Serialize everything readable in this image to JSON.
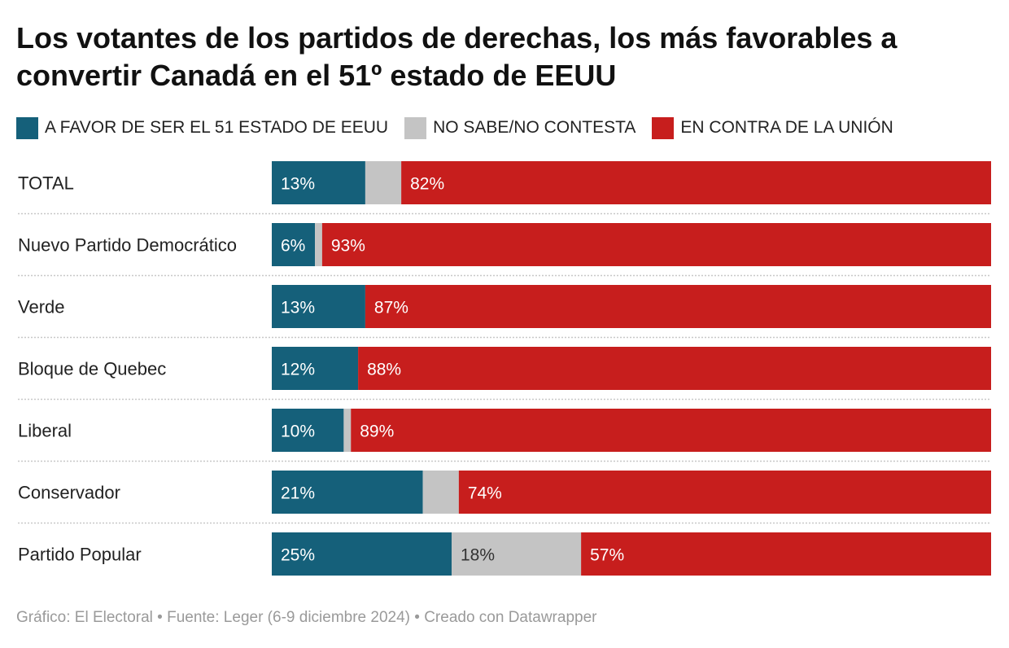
{
  "title": "Los votantes de los partidos de derechas, los más favorables a convertir Canadá en el 51º estado de EEUU",
  "legend": [
    {
      "label": "A FAVOR DE SER EL 51 ESTADO DE EEUU",
      "color": "#15607a"
    },
    {
      "label": "NO SABE/NO CONTESTA",
      "color": "#c4c4c4"
    },
    {
      "label": "EN CONTRA DE LA UNIÓN",
      "color": "#c71e1d"
    }
  ],
  "footer": "Gráfico: El Electoral • Fuente: Leger (6-9 diciembre 2024) • Creado con Datawrapper",
  "chart_data": {
    "type": "bar",
    "orientation": "horizontal",
    "stacked": "100%",
    "categories": [
      "TOTAL",
      "Nuevo Partido Democrático",
      "Verde",
      "Bloque de Quebec",
      "Liberal",
      "Conservador",
      "Partido Popular"
    ],
    "series": [
      {
        "name": "A FAVOR DE SER EL 51 ESTADO DE EEUU",
        "color": "#15607a",
        "text_color": "#ffffff",
        "values": [
          13,
          6,
          13,
          12,
          10,
          21,
          25
        ],
        "labels": [
          "13%",
          "6%",
          "13%",
          "12%",
          "10%",
          "21%",
          "25%"
        ]
      },
      {
        "name": "NO SABE/NO CONTESTA",
        "color": "#c4c4c4",
        "text_color": "#333333",
        "values": [
          5,
          1,
          0,
          0,
          1,
          5,
          18
        ],
        "labels": [
          "",
          "",
          "",
          "",
          "",
          "",
          "18%"
        ]
      },
      {
        "name": "EN CONTRA DE LA UNIÓN",
        "color": "#c71e1d",
        "text_color": "#ffffff",
        "values": [
          82,
          93,
          87,
          88,
          89,
          74,
          57
        ],
        "labels": [
          "82%",
          "93%",
          "87%",
          "88%",
          "89%",
          "74%",
          "57%"
        ]
      }
    ],
    "xlim": [
      0,
      100
    ],
    "legend_position": "top",
    "grid": false
  }
}
